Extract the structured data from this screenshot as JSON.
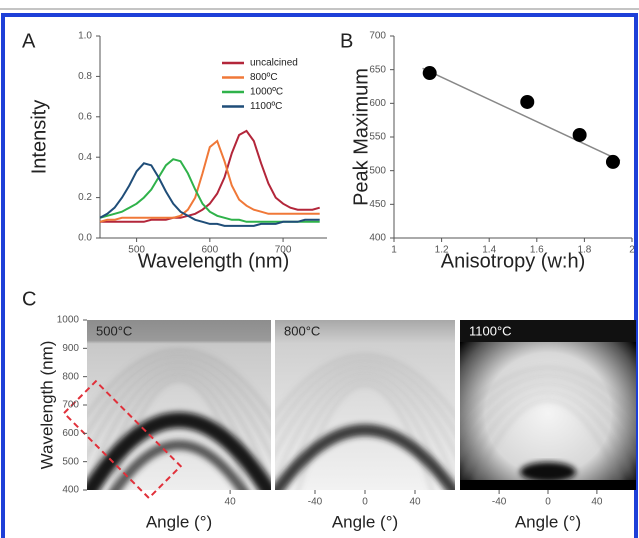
{
  "chart_data": [
    {
      "type": "line",
      "label": "A",
      "ylabel": "Intensity",
      "xlabel": "Wavelength (nm)",
      "xlim": [
        450,
        760
      ],
      "xticks": [
        500,
        600,
        700
      ],
      "ylim": [
        0,
        1
      ],
      "yticks": [
        {
          "value": 0,
          "label": "0.0"
        },
        {
          "value": 0.2,
          "label": "0.2"
        },
        {
          "value": 0.4,
          "label": "0.4"
        },
        {
          "value": 0.6,
          "label": "0.6"
        },
        {
          "value": 0.8,
          "label": "0.8"
        },
        {
          "value": 1,
          "label": "1.0"
        }
      ],
      "x": [
        450,
        460,
        470,
        480,
        490,
        500,
        510,
        520,
        530,
        540,
        550,
        560,
        570,
        580,
        590,
        600,
        610,
        620,
        630,
        640,
        650,
        660,
        670,
        680,
        690,
        700,
        710,
        720,
        730,
        740,
        750
      ],
      "series": [
        {
          "name": "uncalcined",
          "color": "#b3263a",
          "values": [
            0.08,
            0.08,
            0.08,
            0.08,
            0.08,
            0.08,
            0.08,
            0.09,
            0.09,
            0.09,
            0.1,
            0.1,
            0.11,
            0.12,
            0.14,
            0.17,
            0.22,
            0.3,
            0.42,
            0.51,
            0.53,
            0.48,
            0.37,
            0.27,
            0.2,
            0.17,
            0.15,
            0.14,
            0.14,
            0.14,
            0.15
          ]
        },
        {
          "name": "800ºC",
          "color": "#f07838",
          "values": [
            0.08,
            0.09,
            0.09,
            0.1,
            0.1,
            0.1,
            0.1,
            0.1,
            0.1,
            0.1,
            0.1,
            0.11,
            0.14,
            0.2,
            0.32,
            0.45,
            0.48,
            0.38,
            0.26,
            0.19,
            0.16,
            0.14,
            0.13,
            0.12,
            0.12,
            0.12,
            0.12,
            0.12,
            0.12,
            0.12,
            0.12
          ]
        },
        {
          "name": "1000ºC",
          "color": "#2fb24a",
          "values": [
            0.1,
            0.11,
            0.12,
            0.13,
            0.15,
            0.17,
            0.2,
            0.24,
            0.3,
            0.36,
            0.39,
            0.38,
            0.32,
            0.24,
            0.17,
            0.13,
            0.11,
            0.1,
            0.09,
            0.09,
            0.08,
            0.08,
            0.08,
            0.08,
            0.08,
            0.08,
            0.08,
            0.08,
            0.08,
            0.08,
            0.08
          ]
        },
        {
          "name": "1100ºC",
          "color": "#1f4d78",
          "values": [
            0.1,
            0.12,
            0.15,
            0.2,
            0.26,
            0.33,
            0.37,
            0.36,
            0.3,
            0.23,
            0.17,
            0.13,
            0.11,
            0.09,
            0.08,
            0.07,
            0.07,
            0.06,
            0.06,
            0.06,
            0.06,
            0.06,
            0.07,
            0.07,
            0.07,
            0.08,
            0.08,
            0.08,
            0.09,
            0.09,
            0.09
          ]
        }
      ]
    },
    {
      "type": "scatter",
      "label": "B",
      "ylabel": "Peak Maximum",
      "xlabel": "Anisotropy (w:h)",
      "xlim": [
        1,
        2
      ],
      "xticks": [
        1,
        1.2,
        1.4,
        1.6,
        1.8,
        2
      ],
      "ylim": [
        400,
        700
      ],
      "yticks": [
        400,
        450,
        500,
        550,
        600,
        650,
        700
      ],
      "x": [
        1.15,
        1.56,
        1.78,
        1.92
      ],
      "values": [
        645,
        602,
        553,
        513
      ],
      "color": "#000000",
      "fit": {
        "x": [
          1.12,
          1.95
        ],
        "values": [
          652,
          515
        ],
        "color": "#888888"
      }
    },
    {
      "type": "heatmap",
      "label": "C",
      "title": "500°C",
      "ylabel": "Wavelength (nm)",
      "xlabel": "Angle (°)",
      "xlim": [
        -72,
        72
      ],
      "xticks": [
        40
      ],
      "ylim": [
        400,
        1000
      ],
      "yticks": [
        400,
        500,
        600,
        700,
        800,
        900,
        1000
      ]
    },
    {
      "type": "heatmap",
      "title": "800°C",
      "xlabel": "Angle (°)",
      "xlim": [
        -72,
        72
      ],
      "xticks": [
        -40,
        0,
        40
      ],
      "ylim": [
        400,
        1000
      ]
    },
    {
      "type": "heatmap",
      "title": "1100°C",
      "xlabel": "Angle (°)",
      "xlim": [
        -72,
        72
      ],
      "xticks": [
        -40,
        0,
        40
      ],
      "ylim": [
        400,
        1000
      ]
    }
  ]
}
